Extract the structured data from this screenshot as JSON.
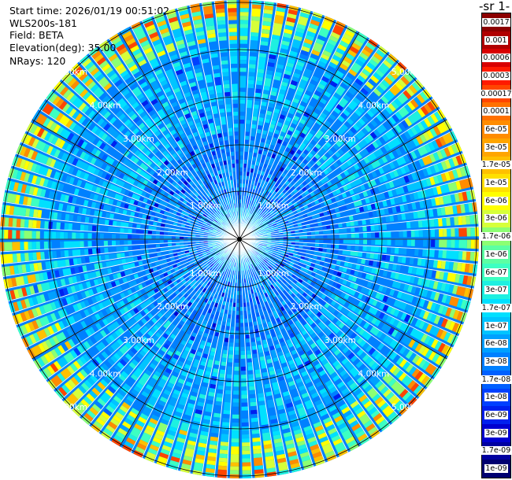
{
  "header": {
    "start_time": "Start time: 2026/01/19 00:51:02",
    "instrument": "WLS200s-181",
    "field": "Field: BETA",
    "elevation": "Elevation(deg): 35.00",
    "nrays": "NRays: 120"
  },
  "colorbar": {
    "unit_label": "-1 sr-",
    "levels": [
      {
        "label": "0.0017",
        "color": "#8b0000"
      },
      {
        "label": "0.001",
        "color": "#b00000"
      },
      {
        "label": "0.0006",
        "color": "#d80000"
      },
      {
        "label": "0.0003",
        "color": "#ff1a00"
      },
      {
        "label": "0.00017",
        "color": "#ff4500"
      },
      {
        "label": "0.0001",
        "color": "#ff7000"
      },
      {
        "label": "6e-05",
        "color": "#ff8c00"
      },
      {
        "label": "3e-05",
        "color": "#ffa500"
      },
      {
        "label": "1.7e-05",
        "color": "#ffc000"
      },
      {
        "label": "1e-05",
        "color": "#ffe000"
      },
      {
        "label": "6e-06",
        "color": "#ffff00"
      },
      {
        "label": "3e-06",
        "color": "#d6ff3a"
      },
      {
        "label": "1.7e-06",
        "color": "#8cff73"
      },
      {
        "label": "1e-06",
        "color": "#5cffa3"
      },
      {
        "label": "6e-07",
        "color": "#3dffc2"
      },
      {
        "label": "3e-07",
        "color": "#1ef0e0"
      },
      {
        "label": "1.7e-07",
        "color": "#00e0ff"
      },
      {
        "label": "1e-07",
        "color": "#00c4ff"
      },
      {
        "label": "6e-08",
        "color": "#00a0ff"
      },
      {
        "label": "3e-08",
        "color": "#0080ff"
      },
      {
        "label": "1.7e-08",
        "color": "#0060ff"
      },
      {
        "label": "1e-08",
        "color": "#0040ff"
      },
      {
        "label": "6e-09",
        "color": "#0020ee"
      },
      {
        "label": "3e-09",
        "color": "#0000d0"
      },
      {
        "label": "1.7e-09",
        "color": "#0000a0"
      },
      {
        "label": "1e-09",
        "color": "#000070"
      }
    ]
  },
  "range_rings": [
    {
      "label": "1.00km"
    },
    {
      "label": "2.00km"
    },
    {
      "label": "3.00km"
    },
    {
      "label": "4.00km"
    },
    {
      "label": "5.00km"
    }
  ]
}
